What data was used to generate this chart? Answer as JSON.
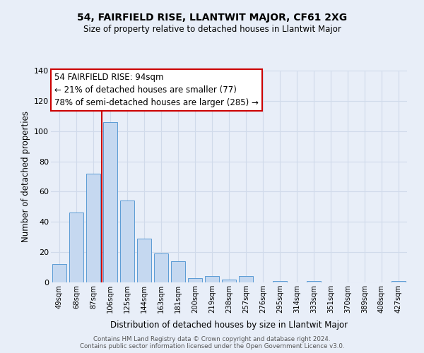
{
  "title": "54, FAIRFIELD RISE, LLANTWIT MAJOR, CF61 2XG",
  "subtitle": "Size of property relative to detached houses in Llantwit Major",
  "xlabel": "Distribution of detached houses by size in Llantwit Major",
  "ylabel": "Number of detached properties",
  "categories": [
    "49sqm",
    "68sqm",
    "87sqm",
    "106sqm",
    "125sqm",
    "144sqm",
    "163sqm",
    "181sqm",
    "200sqm",
    "219sqm",
    "238sqm",
    "257sqm",
    "276sqm",
    "295sqm",
    "314sqm",
    "333sqm",
    "351sqm",
    "370sqm",
    "389sqm",
    "408sqm",
    "427sqm"
  ],
  "values": [
    12,
    46,
    72,
    106,
    54,
    29,
    19,
    14,
    3,
    4,
    2,
    4,
    0,
    1,
    0,
    1,
    0,
    0,
    0,
    0,
    1
  ],
  "bar_color": "#c5d8f0",
  "bar_edge_color": "#5b9bd5",
  "vline_index": 2,
  "vline_color": "#cc0000",
  "annotation_line1": "54 FAIRFIELD RISE: 94sqm",
  "annotation_line2": "← 21% of detached houses are smaller (77)",
  "annotation_line3": "78% of semi-detached houses are larger (285) →",
  "annotation_box_color": "#ffffff",
  "annotation_box_edge_color": "#cc0000",
  "ylim": [
    0,
    140
  ],
  "yticks": [
    0,
    20,
    40,
    60,
    80,
    100,
    120,
    140
  ],
  "grid_color": "#d0daea",
  "background_color": "#e8eef8",
  "footer_line1": "Contains HM Land Registry data © Crown copyright and database right 2024.",
  "footer_line2": "Contains public sector information licensed under the Open Government Licence v3.0."
}
